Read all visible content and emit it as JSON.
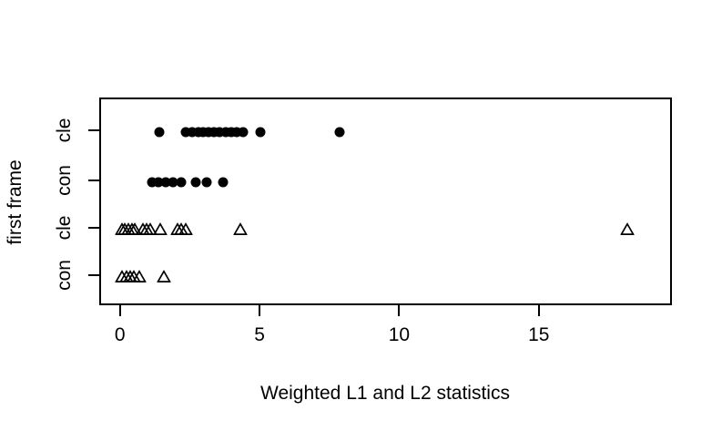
{
  "chart_data": {
    "type": "scatter",
    "subtype": "stripchart",
    "title": "",
    "xlabel": "Weighted L1 and L2 statistics",
    "ylabel": "first frame",
    "x_ticks": [
      0,
      5,
      10,
      15
    ],
    "xlim": [
      -0.74,
      19.77
    ],
    "grid": false,
    "legend": "none",
    "marker_color": "#000000",
    "background_color": "#ffffff",
    "rows": [
      {
        "label": "cle",
        "marker": "filled-circle",
        "values": [
          1.34,
          2.28,
          2.52,
          2.74,
          2.91,
          3.1,
          3.29,
          3.51,
          3.72,
          3.93,
          4.11,
          4.33,
          4.98,
          7.8
        ]
      },
      {
        "label": "con",
        "marker": "filled-circle",
        "values": [
          1.08,
          1.31,
          1.57,
          1.84,
          2.13,
          2.66,
          3.04,
          3.64
        ]
      },
      {
        "label": "cle",
        "marker": "open-triangle",
        "values": [
          0.0,
          0.12,
          0.25,
          0.36,
          0.47,
          0.76,
          0.9,
          1.03,
          1.39,
          1.99,
          2.14,
          2.28,
          4.24,
          18.1
        ]
      },
      {
        "label": "con",
        "marker": "open-triangle",
        "values": [
          0.02,
          0.16,
          0.29,
          0.43,
          0.62,
          1.52
        ]
      }
    ]
  }
}
